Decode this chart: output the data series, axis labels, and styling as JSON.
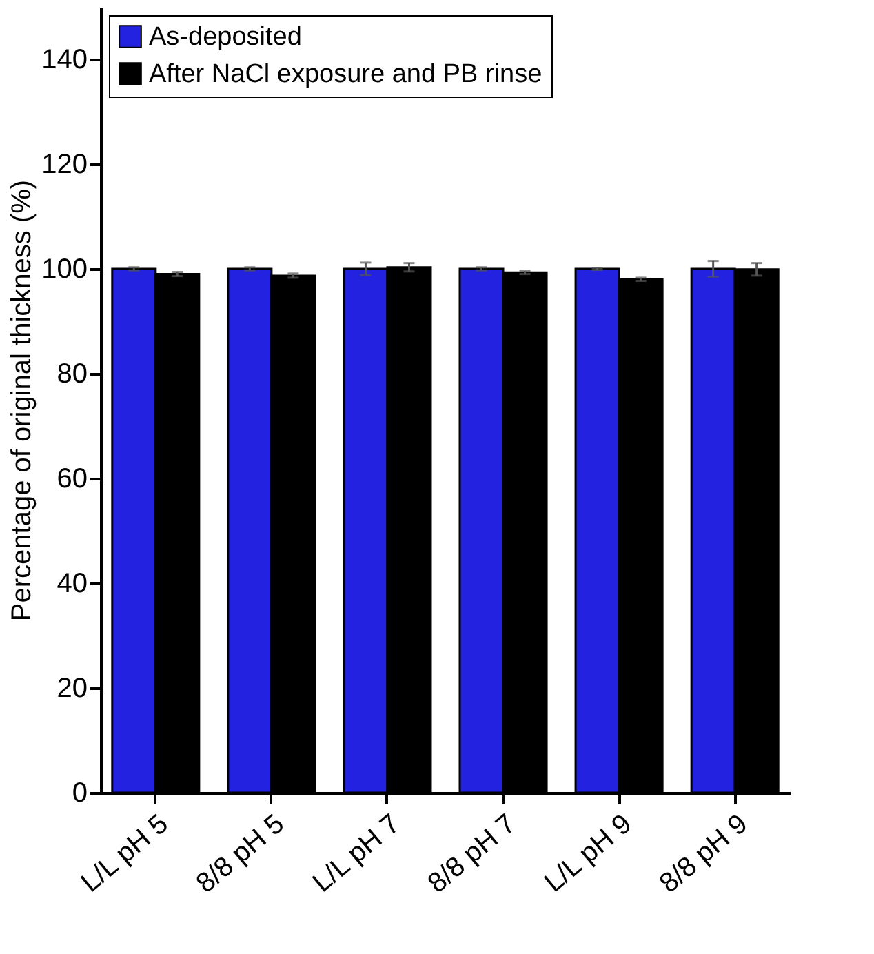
{
  "chart_data": {
    "type": "bar",
    "ylabel": "Percentage of original thickness (%)",
    "categories": [
      "L/L pH 5",
      "8/8 pH 5",
      "L/L pH 7",
      "8/8 pH 7",
      "L/L pH 9",
      "8/8 pH 9"
    ],
    "series": [
      {
        "name": "As-deposited",
        "color": "#2222e0",
        "values": [
          100,
          100,
          100,
          100,
          100,
          100
        ],
        "errors": [
          0.3,
          0.3,
          1.2,
          0.3,
          0.2,
          1.5
        ]
      },
      {
        "name": "After NaCl exposure and PB rinse",
        "color": "#000000",
        "values": [
          99.0,
          98.7,
          100.3,
          99.3,
          98.0,
          99.9
        ],
        "errors": [
          0.4,
          0.4,
          0.8,
          0.3,
          0.3,
          1.2
        ]
      }
    ],
    "ylim": [
      0,
      150
    ],
    "yticks": [
      0,
      20,
      40,
      60,
      80,
      100,
      120,
      140
    ],
    "grid": false,
    "legend": "top left"
  }
}
